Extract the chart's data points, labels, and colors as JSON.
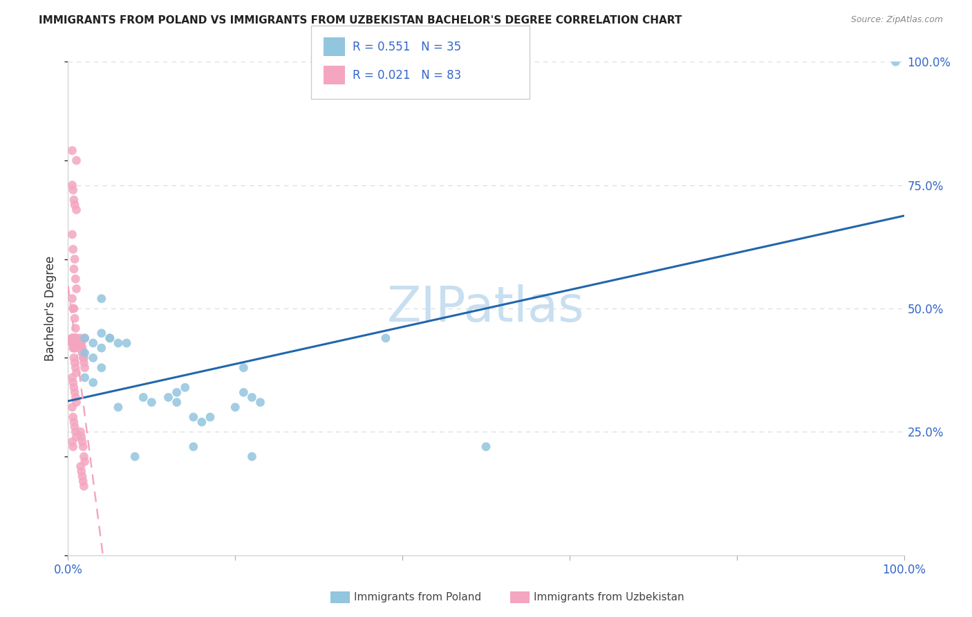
{
  "title": "IMMIGRANTS FROM POLAND VS IMMIGRANTS FROM UZBEKISTAN BACHELOR'S DEGREE CORRELATION CHART",
  "source": "Source: ZipAtlas.com",
  "ylabel": "Bachelor's Degree",
  "legend_label1": "Immigrants from Poland",
  "legend_label2": "Immigrants from Uzbekistan",
  "r1": 0.551,
  "n1": 35,
  "r2": 0.021,
  "n2": 83,
  "color_blue": "#92c5de",
  "color_pink": "#f4a6c0",
  "color_blue_line": "#2166ac",
  "color_pink_line": "#f4a6c0",
  "xlim": [
    0,
    1
  ],
  "ylim": [
    0,
    1
  ],
  "yticks_right": [
    0.25,
    0.5,
    0.75,
    1.0
  ],
  "ytick_right_labels": [
    "25.0%",
    "50.0%",
    "75.0%",
    "100.0%"
  ],
  "grid_color": "#dddddd",
  "watermark": "ZIPatlas",
  "watermark_color": "#c8dff0",
  "poland_x": [
    0.02,
    0.03,
    0.04,
    0.02,
    0.03,
    0.05,
    0.06,
    0.04,
    0.03,
    0.02,
    0.04,
    0.05,
    0.07,
    0.09,
    0.1,
    0.12,
    0.13,
    0.14,
    0.13,
    0.15,
    0.16,
    0.17,
    0.15,
    0.22,
    0.21,
    0.23,
    0.22,
    0.2,
    0.21,
    0.38,
    0.5,
    0.99,
    0.04,
    0.06,
    0.08
  ],
  "poland_y": [
    0.44,
    0.43,
    0.42,
    0.41,
    0.4,
    0.44,
    0.43,
    0.38,
    0.35,
    0.36,
    0.52,
    0.44,
    0.43,
    0.32,
    0.31,
    0.32,
    0.33,
    0.34,
    0.31,
    0.28,
    0.27,
    0.28,
    0.22,
    0.2,
    0.33,
    0.31,
    0.32,
    0.3,
    0.38,
    0.44,
    0.22,
    1.0,
    0.45,
    0.3,
    0.2
  ],
  "uzbekistan_x": [
    0.005,
    0.01,
    0.005,
    0.006,
    0.007,
    0.008,
    0.01,
    0.005,
    0.006,
    0.008,
    0.007,
    0.009,
    0.01,
    0.005,
    0.006,
    0.007,
    0.008,
    0.009,
    0.01,
    0.005,
    0.006,
    0.007,
    0.005,
    0.006,
    0.007,
    0.008,
    0.009,
    0.01,
    0.005,
    0.006,
    0.007,
    0.008,
    0.009,
    0.01,
    0.005,
    0.006,
    0.007,
    0.008,
    0.009,
    0.01,
    0.005,
    0.006,
    0.007,
    0.008,
    0.009,
    0.01,
    0.005,
    0.006,
    0.007,
    0.008,
    0.009,
    0.01,
    0.005,
    0.006,
    0.007,
    0.008,
    0.009,
    0.01,
    0.005,
    0.006,
    0.015,
    0.016,
    0.017,
    0.018,
    0.019,
    0.02,
    0.015,
    0.016,
    0.017,
    0.018,
    0.019,
    0.02,
    0.015,
    0.016,
    0.017,
    0.018,
    0.019,
    0.02,
    0.015,
    0.016,
    0.017,
    0.018,
    0.019
  ],
  "uzbekistan_y": [
    0.82,
    0.8,
    0.75,
    0.74,
    0.72,
    0.71,
    0.7,
    0.65,
    0.62,
    0.6,
    0.58,
    0.56,
    0.54,
    0.52,
    0.5,
    0.5,
    0.48,
    0.46,
    0.44,
    0.44,
    0.43,
    0.42,
    0.44,
    0.43,
    0.44,
    0.43,
    0.42,
    0.44,
    0.43,
    0.44,
    0.43,
    0.42,
    0.44,
    0.43,
    0.44,
    0.43,
    0.42,
    0.44,
    0.43,
    0.44,
    0.43,
    0.42,
    0.4,
    0.39,
    0.38,
    0.37,
    0.36,
    0.35,
    0.34,
    0.33,
    0.32,
    0.31,
    0.3,
    0.28,
    0.27,
    0.26,
    0.25,
    0.24,
    0.23,
    0.22,
    0.44,
    0.43,
    0.42,
    0.41,
    0.4,
    0.44,
    0.43,
    0.42,
    0.41,
    0.4,
    0.39,
    0.38,
    0.25,
    0.24,
    0.23,
    0.22,
    0.2,
    0.19,
    0.18,
    0.17,
    0.16,
    0.15,
    0.14
  ]
}
